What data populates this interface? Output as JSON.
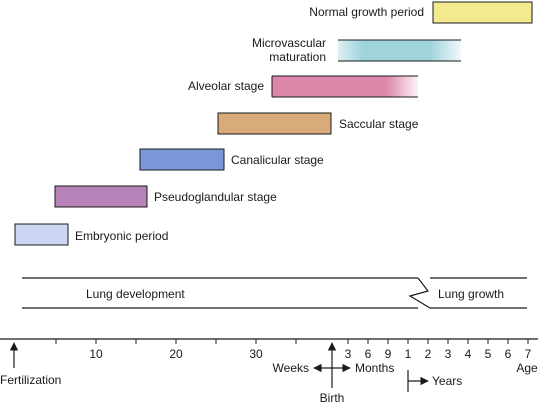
{
  "stages": [
    {
      "id": "normal-growth",
      "label": "Normal growth period",
      "color": "#f2ea8c"
    },
    {
      "id": "microvascular",
      "label_lines": [
        "Microvascular",
        "maturation"
      ],
      "color": "#9fd4dc"
    },
    {
      "id": "alveolar",
      "label": "Alveolar stage",
      "color": "#dc86aa"
    },
    {
      "id": "saccular",
      "label": "Saccular stage",
      "color": "#d9aa7a"
    },
    {
      "id": "canalicular",
      "label": "Canalicular stage",
      "color": "#7b97d8"
    },
    {
      "id": "pseudoglandular",
      "label": "Pseudoglandular stage",
      "color": "#b782b8"
    },
    {
      "id": "embryonic",
      "label": "Embryonic period",
      "color": "#ccd6f2"
    }
  ],
  "bands": {
    "lung_development": "Lung development",
    "lung_growth": "Lung growth"
  },
  "axis": {
    "weeks_ticks": [
      "10",
      "20",
      "30"
    ],
    "months_ticks": [
      "3",
      "6",
      "9"
    ],
    "years_ticks": [
      "1",
      "2",
      "3",
      "4",
      "5",
      "6",
      "7"
    ],
    "age_label": "Age",
    "fertilization": "Fertilization",
    "birth": "Birth",
    "weeks": "Weeks",
    "months": "Months",
    "years": "Years"
  }
}
